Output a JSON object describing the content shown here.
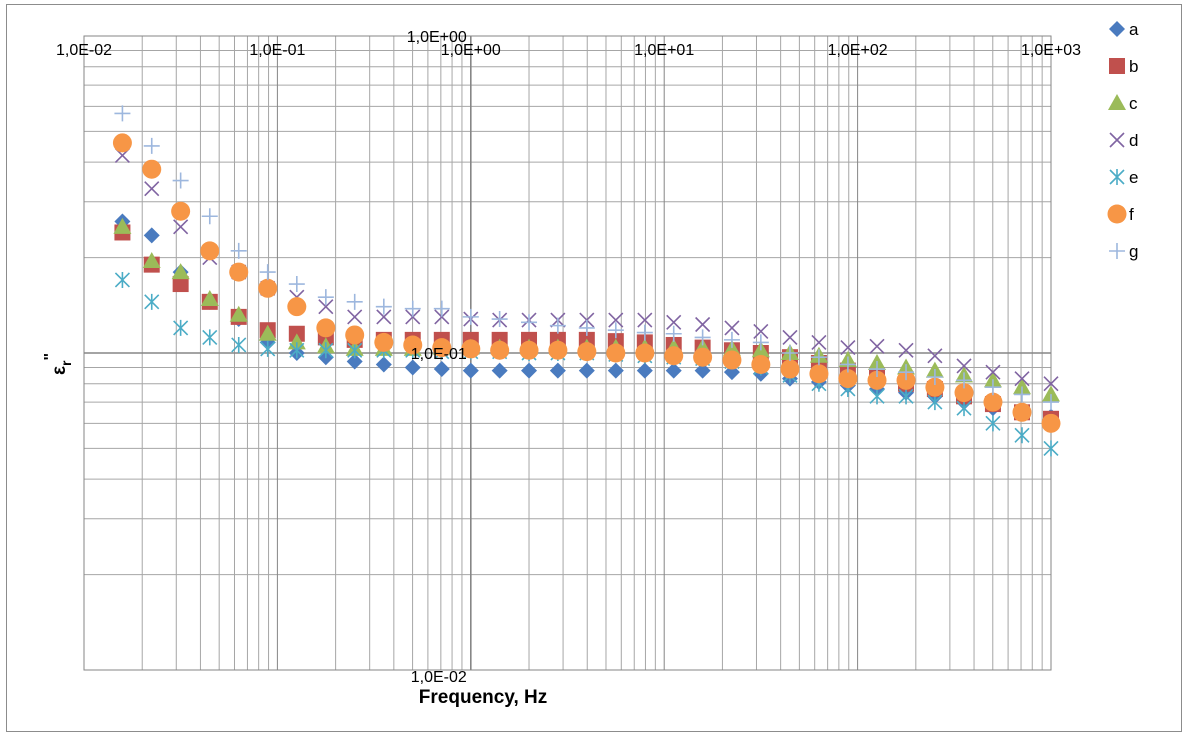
{
  "chart_data": {
    "type": "scatter",
    "title": "",
    "xlabel": "Frequency, Hz",
    "ylabel": "ε_r\"",
    "ylabel_main": "ε",
    "ylabel_sub": "r",
    "ylabel_sup": "\"",
    "x_scale": "log",
    "y_scale": "log",
    "xlim": [
      0.01,
      1000
    ],
    "ylim": [
      0.01,
      1
    ],
    "x_ticks": [
      0.01,
      0.1,
      1,
      10,
      100,
      1000
    ],
    "x_tick_labels": [
      "1,0E-02",
      "1,0E-01",
      "1,0E+00",
      "1,0E+01",
      "1,0E+02",
      "1,0E+03"
    ],
    "y_ticks": [
      1,
      0.1,
      0.01
    ],
    "y_tick_labels": [
      "1,0E+00",
      "1,0E-01",
      "1,0E-02"
    ],
    "x_axis_position": "top",
    "y_axis_crosses_at_x": 1,
    "grid": true,
    "legend_position": "right",
    "x": [
      0.0158,
      0.0224,
      0.0316,
      0.0447,
      0.0631,
      0.0891,
      0.126,
      0.178,
      0.251,
      0.355,
      0.501,
      0.708,
      1.0,
      1.41,
      2.0,
      2.82,
      3.98,
      5.62,
      7.94,
      11.2,
      15.8,
      22.4,
      31.6,
      44.7,
      63.1,
      89.1,
      126,
      178,
      251,
      355,
      501,
      708,
      1000
    ],
    "series": [
      {
        "name": "a",
        "color": "#4a7bbf",
        "marker": "diamond",
        "values": [
          0.26,
          0.235,
          0.18,
          0.145,
          0.128,
          0.108,
          0.1,
          0.097,
          0.094,
          0.092,
          0.09,
          0.089,
          0.088,
          0.088,
          0.088,
          0.088,
          0.088,
          0.088,
          0.088,
          0.088,
          0.088,
          0.087,
          0.086,
          0.083,
          0.081,
          0.079,
          0.077,
          0.075,
          0.073,
          0.07,
          0.067,
          0.065,
          0.063
        ]
      },
      {
        "name": "b",
        "color": "#c0504d",
        "marker": "square",
        "values": [
          0.24,
          0.19,
          0.165,
          0.145,
          0.13,
          0.118,
          0.115,
          0.112,
          0.11,
          0.11,
          0.11,
          0.11,
          0.11,
          0.11,
          0.11,
          0.11,
          0.11,
          0.109,
          0.108,
          0.106,
          0.104,
          0.102,
          0.1,
          0.097,
          0.093,
          0.088,
          0.085,
          0.08,
          0.077,
          0.073,
          0.069,
          0.065,
          0.062
        ]
      },
      {
        "name": "c",
        "color": "#9bbb59",
        "marker": "triangle",
        "values": [
          0.25,
          0.195,
          0.18,
          0.148,
          0.132,
          0.115,
          0.108,
          0.105,
          0.103,
          0.103,
          0.103,
          0.104,
          0.104,
          0.104,
          0.104,
          0.104,
          0.104,
          0.104,
          0.104,
          0.104,
          0.104,
          0.103,
          0.102,
          0.1,
          0.098,
          0.095,
          0.093,
          0.09,
          0.088,
          0.085,
          0.082,
          0.078,
          0.074
        ]
      },
      {
        "name": "d",
        "color": "#8064a2",
        "marker": "x",
        "values": [
          0.42,
          0.33,
          0.25,
          0.2,
          0.18,
          0.16,
          0.15,
          0.14,
          0.13,
          0.13,
          0.13,
          0.13,
          0.128,
          0.127,
          0.127,
          0.127,
          0.127,
          0.127,
          0.127,
          0.125,
          0.123,
          0.12,
          0.117,
          0.112,
          0.108,
          0.104,
          0.105,
          0.102,
          0.098,
          0.091,
          0.087,
          0.083,
          0.08
        ]
      },
      {
        "name": "e",
        "color": "#4bacc6",
        "marker": "star",
        "values": [
          0.17,
          0.145,
          0.12,
          0.112,
          0.106,
          0.103,
          0.102,
          0.102,
          0.102,
          0.102,
          0.102,
          0.101,
          0.101,
          0.101,
          0.1,
          0.1,
          0.1,
          0.099,
          0.098,
          0.097,
          0.096,
          0.094,
          0.09,
          0.085,
          0.08,
          0.077,
          0.073,
          0.073,
          0.07,
          0.067,
          0.06,
          0.055,
          0.05
        ]
      },
      {
        "name": "f",
        "color": "#f79646",
        "marker": "circle",
        "values": [
          0.46,
          0.38,
          0.28,
          0.21,
          0.18,
          0.16,
          0.14,
          0.12,
          0.114,
          0.108,
          0.106,
          0.104,
          0.103,
          0.102,
          0.102,
          0.102,
          0.101,
          0.1,
          0.1,
          0.098,
          0.097,
          0.095,
          0.092,
          0.089,
          0.086,
          0.083,
          0.082,
          0.082,
          0.078,
          0.075,
          0.07,
          0.065,
          0.06
        ]
      },
      {
        "name": "g",
        "color": "#9db7de",
        "marker": "plus",
        "values": [
          0.57,
          0.45,
          0.35,
          0.27,
          0.21,
          0.18,
          0.165,
          0.15,
          0.145,
          0.14,
          0.138,
          0.138,
          0.13,
          0.128,
          0.125,
          0.122,
          0.12,
          0.118,
          0.116,
          0.115,
          0.112,
          0.11,
          0.108,
          0.1,
          0.097,
          0.092,
          0.089,
          0.087,
          0.084,
          0.082,
          0.078,
          0.074,
          0.07
        ]
      }
    ]
  }
}
